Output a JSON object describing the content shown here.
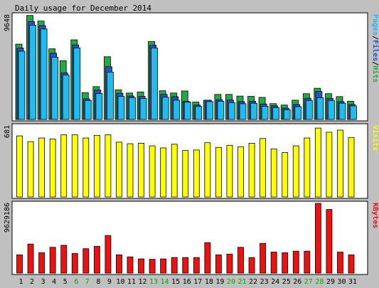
{
  "chart_data": {
    "type": "bar",
    "title": "Daily usage for December 2014",
    "categories": [
      "1",
      "2",
      "3",
      "4",
      "5",
      "6",
      "7",
      "8",
      "9",
      "10",
      "11",
      "12",
      "13",
      "14",
      "15",
      "16",
      "17",
      "18",
      "19",
      "20",
      "21",
      "22",
      "23",
      "24",
      "25",
      "26",
      "27",
      "28",
      "29",
      "30",
      "31"
    ],
    "weekend_days": [
      "6",
      "7",
      "13",
      "14",
      "20",
      "21",
      "27",
      "28"
    ],
    "colors": {
      "hits": "#22AA44",
      "files": "#2255CC",
      "pages": "#22BBEE",
      "visits": "#FFFF00",
      "kbytes": "#EE1111",
      "weekend_label": "#00AA00",
      "weekday_label": "#000000",
      "frame_bg": "#FFFFFF",
      "page_bg": "#C0C0C0"
    },
    "panels": [
      {
        "key": "hits_files_pages",
        "ymax_label": "9648",
        "ymax": 9648,
        "side_label": [
          {
            "text": "Pages",
            "color": "#22BBEE"
          },
          {
            "text": "/",
            "color": "#000000"
          },
          {
            "text": "Files",
            "color": "#2255CC"
          },
          {
            "text": "/",
            "color": "#000000"
          },
          {
            "text": "Hits",
            "color": "#22AA44"
          }
        ],
        "series": [
          {
            "name": "Hits",
            "values": [
              6950,
              9600,
              9080,
              6520,
              5420,
              7350,
              2480,
              3030,
              5790,
              2740,
              2440,
              2540,
              7200,
              2650,
              2440,
              2630,
              1610,
              1780,
              2310,
              2310,
              2160,
              2130,
              2040,
              1460,
              1330,
              1780,
              2380,
              2880,
              2380,
              2110,
              1680
            ]
          },
          {
            "name": "Files",
            "values": [
              6600,
              9030,
              8660,
              6110,
              4300,
              6880,
              1900,
              2710,
              4870,
              2420,
              2160,
              2130,
              6860,
              2310,
              2100,
              1680,
              1330,
              1780,
              1830,
              1800,
              1650,
              1680,
              1430,
              1250,
              1040,
              1380,
              1950,
              2590,
              1950,
              1650,
              1380
            ]
          },
          {
            "name": "Pages",
            "values": [
              6300,
              8700,
              8350,
              5750,
              4100,
              6600,
              1750,
              2400,
              4370,
              2130,
              2000,
              1930,
              6590,
              2050,
              1780,
              1600,
              1200,
              1650,
              1680,
              1550,
              1450,
              1500,
              1220,
              1100,
              900,
              1180,
              1750,
              2000,
              1750,
              1500,
              1250
            ]
          }
        ]
      },
      {
        "key": "visits",
        "ymax_label": "681",
        "ymax": 681,
        "side_label": [
          {
            "text": "Visits",
            "color": "#FFFF00"
          }
        ],
        "series": [
          {
            "name": "Visits",
            "values": [
              585,
              530,
              565,
              555,
              595,
              595,
              565,
              590,
              595,
              525,
              510,
              515,
              490,
              470,
              505,
              445,
              450,
              520,
              475,
              495,
              480,
              515,
              560,
              460,
              425,
              490,
              565,
              660,
              620,
              640,
              570
            ]
          }
        ]
      },
      {
        "key": "kbytes",
        "ymax_label": "9629186",
        "ymax": 9629186,
        "side_label": [
          {
            "text": "KBytes",
            "color": "#EE1111"
          }
        ],
        "series": [
          {
            "name": "KBytes",
            "values": [
              2520000,
              4010000,
              2810000,
              3560000,
              3840000,
              2710000,
              3370000,
              3700000,
              5190000,
              2520000,
              2240000,
              1960000,
              1900000,
              1960000,
              2150000,
              2150000,
              2150000,
              4210000,
              2520000,
              2620000,
              3560000,
              2150000,
              4110000,
              2900000,
              2810000,
              3030000,
              3030000,
              9630000,
              8790000,
              2900000,
              2520000
            ]
          }
        ]
      }
    ]
  }
}
